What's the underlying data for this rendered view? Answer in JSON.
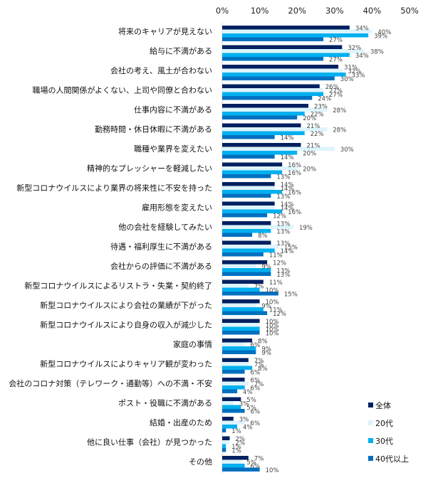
{
  "chart_data": {
    "type": "bar",
    "orientation": "horizontal",
    "title": "",
    "xlabel": "",
    "ylabel": "",
    "xlim": [
      0,
      50
    ],
    "x_ticks": [
      "0%",
      "10%",
      "20%",
      "30%",
      "40%",
      "50%"
    ],
    "x_tick_values": [
      0,
      10,
      20,
      30,
      40,
      50
    ],
    "x_axis_position": "top",
    "grid": false,
    "legend_position": "bottom-right",
    "unit": "%",
    "categories": [
      "将来のキャリアが見えない",
      "給与に不満がある",
      "会社の考え、風土が合わない",
      "職場の人間関係がよくない、上司や同僚と合わない",
      "仕事内容に不満がある",
      "勤務時間・休日休暇に不満がある",
      "職種や業界を変えたい",
      "精神的なプレッシャーを軽減したい",
      "新型コロナウイルスにより業界の将来性に不安を持った",
      "雇用形態を変えたい",
      "他の会社を経験してみたい",
      "待遇・福利厚生に不満がある",
      "会社からの評価に不満がある",
      "新型コロナウイルスによるリストラ・失業・契約終了",
      "新型コロナウイルスにより会社の業績が下がった",
      "新型コロナウイルスにより自身の収入が減少した",
      "家庭の事情",
      "新型コロナウイルスによりキャリア観が変わった",
      "会社のコロナ対策（テレワーク・通勤等）への不満・不安",
      "ポスト・役職に不満がある",
      "結婚・出産のため",
      "他に良い仕事（会社）が見つかった",
      "その他"
    ],
    "series": [
      {
        "name": "全体",
        "color": "#002060",
        "values": [
          34,
          32,
          31,
          26,
          23,
          21,
          21,
          16,
          14,
          14,
          13,
          13,
          12,
          11,
          10,
          10,
          8,
          7,
          6,
          5,
          3,
          2,
          7
        ]
      },
      {
        "name": "20代",
        "color": "#DDF4FC",
        "values": [
          40,
          38,
          32,
          27,
          28,
          28,
          30,
          20,
          14,
          14,
          19,
          15,
          9,
          7,
          9,
          10,
          6,
          7,
          7,
          3,
          6,
          2,
          5
        ]
      },
      {
        "name": "30代",
        "color": "#00B0F0",
        "values": [
          39,
          34,
          33,
          27,
          22,
          22,
          20,
          16,
          16,
          16,
          13,
          14,
          13,
          10,
          11,
          10,
          9,
          8,
          6,
          5,
          4,
          1,
          6
        ]
      },
      {
        "name": "40代以上",
        "color": "#0070C0",
        "values": [
          27,
          27,
          30,
          24,
          20,
          14,
          14,
          13,
          13,
          12,
          8,
          11,
          13,
          15,
          12,
          10,
          9,
          6,
          4,
          6,
          1,
          1,
          10
        ]
      }
    ]
  }
}
